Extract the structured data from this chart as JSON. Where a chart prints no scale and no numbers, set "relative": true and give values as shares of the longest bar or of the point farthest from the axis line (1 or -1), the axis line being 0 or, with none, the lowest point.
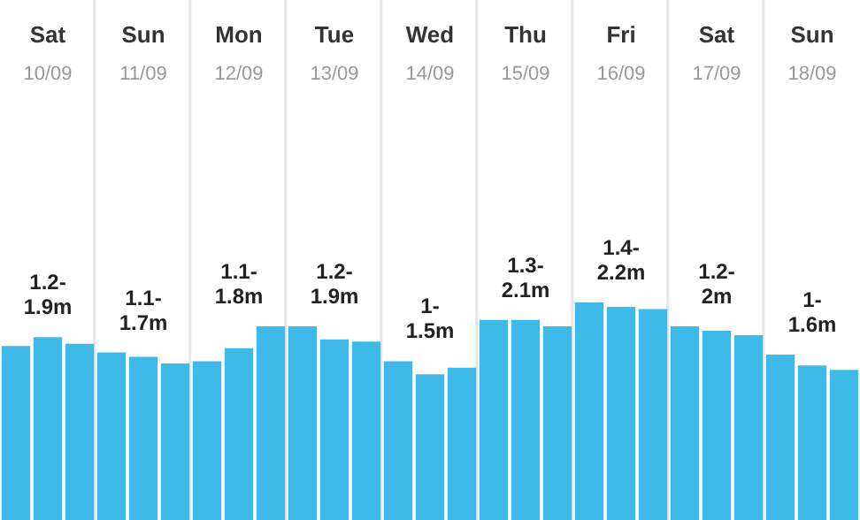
{
  "chart_data": {
    "type": "bar",
    "relative": true,
    "grid": "x",
    "color": "#3dbae8",
    "categories": [
      null,
      null,
      null,
      null,
      null,
      null,
      null,
      null,
      null,
      null,
      null,
      null,
      null,
      null,
      null,
      null,
      null,
      null,
      null,
      null,
      null,
      null,
      null,
      null,
      null,
      null,
      null
    ],
    "values": [
      0.8,
      0.84,
      0.81,
      0.77,
      0.75,
      0.72,
      0.73,
      0.79,
      0.89,
      0.89,
      0.83,
      0.82,
      0.73,
      0.67,
      0.7,
      0.92,
      0.92,
      0.89,
      1,
      0.98,
      0.97,
      0.89,
      0.87,
      0.85,
      0.76,
      0.71,
      0.69
    ],
    "annotations": [
      "Sat",
      "10/09",
      "1.2-1.9m",
      "Sun",
      "11/09",
      "1.1-1.7m",
      "Mon",
      "12/09",
      "1.1-1.8m",
      "Tue",
      "13/09",
      "1.2-1.9m",
      "Wed",
      "14/09",
      "1-1.5m",
      "Thu",
      "15/09",
      "1.3-2.1m",
      "Fri",
      "16/09",
      "1.4-2.2m",
      "Sat",
      "17/09",
      "1.2-2m",
      "Sun",
      "18/09",
      "1-1.6m"
    ]
  }
}
